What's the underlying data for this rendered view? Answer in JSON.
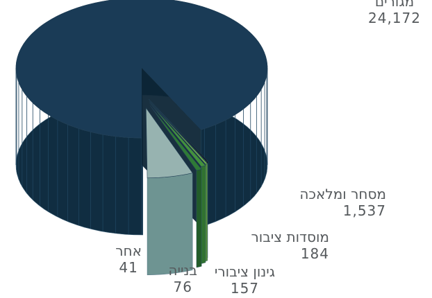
{
  "chart_data": {
    "type": "pie",
    "categories": [
      "מגורים",
      "מסחר ומלאכה",
      "מוסדות ציבור",
      "גינון ציבורי",
      "בנייה",
      "אחר"
    ],
    "values": [
      24172,
      1537,
      184,
      157,
      76,
      41
    ],
    "value_labels": [
      "24,172",
      "1,537",
      "184",
      "157",
      "76",
      "41"
    ],
    "title": "",
    "legend": "none",
    "colors": {
      "top": [
        "#1a3b56",
        "#97b3b0",
        "#2f7a36",
        "#43923c",
        "#6fab4b",
        "#111111"
      ],
      "side": [
        "#102d41",
        "#6e9492",
        "#225c29",
        "#307230",
        "#548d3b",
        "#000000"
      ]
    }
  }
}
